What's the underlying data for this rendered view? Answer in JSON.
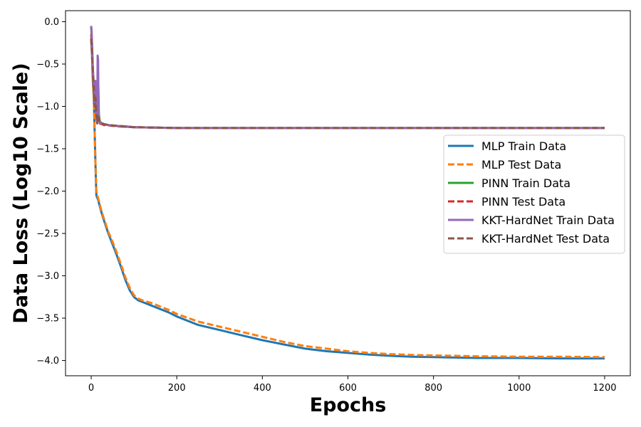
{
  "chart_data": {
    "type": "line",
    "title": "",
    "xlabel": "Epochs",
    "ylabel": "Data Loss (Log10 Scale)",
    "xlim": [
      -60,
      1260
    ],
    "ylim": [
      -4.18,
      0.13
    ],
    "x_ticks": [
      0,
      200,
      400,
      600,
      800,
      1000,
      1200
    ],
    "y_ticks": [
      0.0,
      -0.5,
      -1.0,
      -1.5,
      -2.0,
      -2.5,
      -3.0,
      -3.5,
      -4.0
    ],
    "x_tick_labels": [
      "0",
      "200",
      "400",
      "600",
      "800",
      "1000",
      "1200"
    ],
    "y_tick_labels": [
      "0.0",
      "−0.5",
      "−1.0",
      "−1.5",
      "−2.0",
      "−2.5",
      "−3.0",
      "−3.5",
      "−4.0"
    ],
    "grid": false,
    "legend_position": "right",
    "series": [
      {
        "name": "MLP Train Data",
        "color": "#1f77b4",
        "style": "solid",
        "x": [
          0,
          2,
          4,
          6,
          8,
          10,
          12,
          14,
          16,
          20,
          25,
          30,
          40,
          50,
          60,
          70,
          80,
          90,
          100,
          110,
          120,
          140,
          160,
          180,
          200,
          250,
          300,
          350,
          400,
          450,
          500,
          550,
          600,
          650,
          700,
          750,
          800,
          850,
          900,
          1000,
          1100,
          1200
        ],
        "y": [
          -0.2,
          -0.4,
          -0.7,
          -0.9,
          -1.3,
          -1.7,
          -2.05,
          -2.08,
          -2.1,
          -2.18,
          -2.27,
          -2.35,
          -2.5,
          -2.63,
          -2.76,
          -2.9,
          -3.05,
          -3.17,
          -3.25,
          -3.29,
          -3.31,
          -3.35,
          -3.39,
          -3.43,
          -3.48,
          -3.58,
          -3.64,
          -3.7,
          -3.76,
          -3.81,
          -3.86,
          -3.89,
          -3.91,
          -3.93,
          -3.945,
          -3.955,
          -3.96,
          -3.965,
          -3.97,
          -3.97,
          -3.975,
          -3.975
        ]
      },
      {
        "name": "MLP Test Data",
        "color": "#ff7f0e",
        "style": "dashed",
        "x": [
          0,
          2,
          4,
          6,
          8,
          10,
          12,
          14,
          16,
          20,
          25,
          30,
          40,
          50,
          60,
          70,
          80,
          90,
          100,
          110,
          120,
          140,
          160,
          180,
          200,
          250,
          300,
          350,
          400,
          450,
          500,
          550,
          600,
          650,
          700,
          750,
          800,
          850,
          900,
          1000,
          1100,
          1200
        ],
        "y": [
          -0.2,
          -0.4,
          -0.7,
          -0.9,
          -1.3,
          -1.7,
          -2.0,
          -2.05,
          -2.08,
          -2.16,
          -2.25,
          -2.33,
          -2.48,
          -2.6,
          -2.73,
          -2.87,
          -3.02,
          -3.14,
          -3.23,
          -3.27,
          -3.29,
          -3.32,
          -3.36,
          -3.4,
          -3.45,
          -3.54,
          -3.6,
          -3.66,
          -3.72,
          -3.78,
          -3.83,
          -3.86,
          -3.89,
          -3.91,
          -3.925,
          -3.935,
          -3.94,
          -3.945,
          -3.95,
          -3.955,
          -3.955,
          -3.96
        ]
      },
      {
        "name": "PINN Train Data",
        "color": "#2ca02c",
        "style": "solid",
        "x": [
          0,
          2,
          4,
          6,
          8,
          10,
          12,
          14,
          16,
          18,
          20,
          25,
          30,
          40,
          60,
          80,
          100,
          150,
          200,
          300,
          400,
          600,
          800,
          1000,
          1200
        ],
        "y": [
          -0.06,
          -0.25,
          -0.6,
          -0.8,
          -1.0,
          -0.7,
          -1.05,
          -1.15,
          -0.6,
          -1.1,
          -1.18,
          -1.2,
          -1.21,
          -1.22,
          -1.23,
          -1.235,
          -1.245,
          -1.25,
          -1.255,
          -1.255,
          -1.255,
          -1.255,
          -1.255,
          -1.255,
          -1.255
        ]
      },
      {
        "name": "PINN Test Data",
        "color": "#d62728",
        "style": "dashed",
        "x": [
          0,
          2,
          4,
          6,
          8,
          10,
          12,
          14,
          16,
          18,
          20,
          25,
          30,
          40,
          60,
          80,
          100,
          150,
          200,
          300,
          400,
          600,
          800,
          1000,
          1200
        ],
        "y": [
          -0.15,
          -0.3,
          -0.6,
          -0.8,
          -1.0,
          -0.8,
          -1.1,
          -1.2,
          -1.05,
          -1.15,
          -1.2,
          -1.21,
          -1.22,
          -1.225,
          -1.235,
          -1.24,
          -1.245,
          -1.25,
          -1.255,
          -1.255,
          -1.255,
          -1.255,
          -1.255,
          -1.255,
          -1.255
        ]
      },
      {
        "name": "KKT-HardNet Train Data",
        "color": "#9467bd",
        "style": "solid",
        "x": [
          0,
          1,
          2,
          4,
          6,
          8,
          10,
          12,
          14,
          15,
          16,
          17,
          18,
          20,
          25,
          30,
          40,
          60,
          80,
          100,
          150,
          200,
          300,
          400,
          600,
          800,
          1000,
          1200
        ],
        "y": [
          -0.05,
          -0.1,
          -0.3,
          -0.55,
          -0.75,
          -0.95,
          -0.7,
          -1.1,
          -1.2,
          -0.4,
          -0.45,
          -1.0,
          -1.15,
          -1.19,
          -1.2,
          -1.21,
          -1.22,
          -1.23,
          -1.235,
          -1.245,
          -1.25,
          -1.255,
          -1.255,
          -1.255,
          -1.255,
          -1.255,
          -1.255,
          -1.255
        ]
      },
      {
        "name": "KKT-HardNet Test Data",
        "color": "#8c564b",
        "style": "dashed",
        "x": [
          0,
          2,
          4,
          6,
          8,
          10,
          12,
          14,
          16,
          18,
          20,
          25,
          30,
          40,
          60,
          80,
          100,
          150,
          200,
          300,
          400,
          600,
          800,
          1000,
          1200
        ],
        "y": [
          -0.2,
          -0.35,
          -0.6,
          -0.8,
          -1.0,
          -0.9,
          -1.1,
          -1.2,
          -1.1,
          -1.15,
          -1.19,
          -1.2,
          -1.21,
          -1.22,
          -1.23,
          -1.24,
          -1.245,
          -1.25,
          -1.255,
          -1.255,
          -1.255,
          -1.255,
          -1.255,
          -1.255,
          -1.255
        ]
      }
    ]
  }
}
